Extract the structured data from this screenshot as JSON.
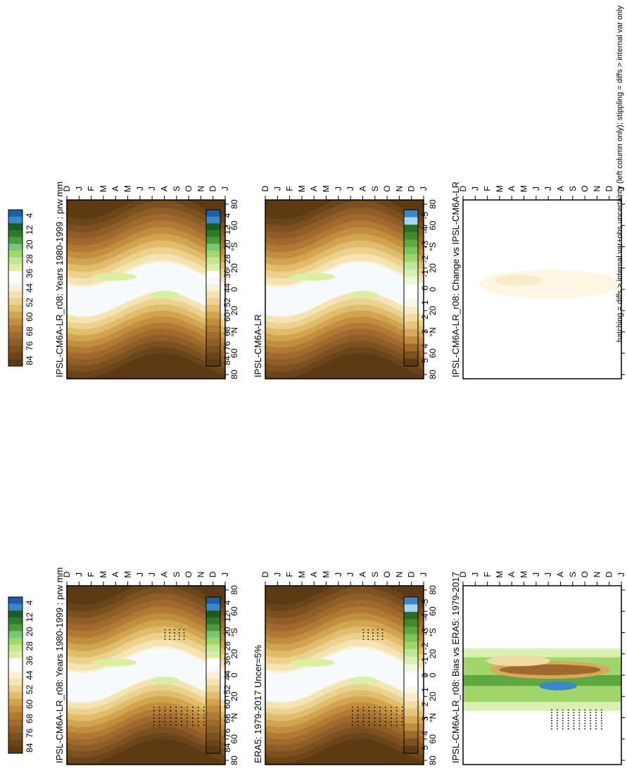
{
  "footer": "hatching = diffs > internal var+obs uncertainty (left column only); stippling = diffs > internal var only",
  "months": [
    "D",
    "J",
    "F",
    "M",
    "A",
    "M",
    "J",
    "J",
    "A",
    "S",
    "O",
    "N",
    "D",
    "J"
  ],
  "lat_labels": [
    "80",
    "60",
    "°N",
    "20",
    "0",
    "20",
    "°S",
    "60",
    "80"
  ],
  "climo_palette": [
    "#5c3a14",
    "#6b451a",
    "#7d5020",
    "#8f5d27",
    "#a06a2e",
    "#b07a35",
    "#c18e3e",
    "#d1a450",
    "#e0bd6b",
    "#ecd28e",
    "#f4e3b3",
    "#faf1d6",
    "#f7fbff",
    "#ffffff",
    "#d9f0a3",
    "#c2e699",
    "#a1d76a",
    "#78c679",
    "#4d9a3a",
    "#2f7a2a",
    "#1d5c1f",
    "#3a87c9",
    "#1a5ea8"
  ],
  "diff_palette": [
    "#5c3a14",
    "#7d5020",
    "#a06a2e",
    "#c18e3e",
    "#d7a95a",
    "#e6c47b",
    "#f0dba2",
    "#f7ecc7",
    "#fcf6e2",
    "#ffffff",
    "#ffffff",
    "#ecf8d9",
    "#d9f0b3",
    "#bfe59a",
    "#a1d76a",
    "#7fc35a",
    "#5ea840",
    "#3f8c2c",
    "#2a6e22",
    "#a9d4f0",
    "#3a87c9"
  ],
  "colors": {
    "frame": "#000000"
  },
  "panels": [
    {
      "id": "p1",
      "title": "IPSL-CM6A-LR_r08: Years 1980-1999 : prw mm",
      "kind": "climo",
      "stipple": true
    },
    {
      "id": "p2",
      "title": "ERA5: 1979-2017 Uncer=5%",
      "kind": "climo",
      "stipple": true
    },
    {
      "id": "p3",
      "title": "IPSL-CM6A-LR_r08: Bias vs ERA5: 1979-2017",
      "kind": "bias",
      "stipple": true
    },
    {
      "id": "p4",
      "title": "IPSL-CM6A-LR_r08: Years 1980-1999 : prw mm",
      "kind": "climo",
      "stipple": false
    },
    {
      "id": "p5",
      "title": "IPSL-CM6A-LR",
      "kind": "climo",
      "stipple": false
    },
    {
      "id": "p6",
      "title": "IPSL-CM6A-LR_r08: Change vs IPSL-CM6A-LR",
      "kind": "change",
      "stipple": false
    }
  ],
  "colorbars": [
    {
      "id": "cb1",
      "labels": [
        "84",
        "76",
        "68",
        "60",
        "52",
        "44",
        "36",
        "28",
        "20",
        "12",
        "4"
      ]
    },
    {
      "id": "cb2",
      "labels": [
        "84",
        "76",
        "68",
        "60",
        "52",
        "44",
        "36",
        "28",
        "20",
        "12",
        "4"
      ]
    },
    {
      "id": "cb3",
      "labels": [
        "5",
        "4",
        "3",
        "2",
        "1",
        "0",
        "-1",
        "-2",
        "-3",
        "-4",
        "-5"
      ]
    },
    {
      "id": "cb4",
      "labels": [
        "84",
        "76",
        "68",
        "60",
        "52",
        "44",
        "36",
        "28",
        "20",
        "12",
        "4"
      ]
    },
    {
      "id": "cb5",
      "labels": [
        "84",
        "76",
        "68",
        "60",
        "52",
        "44",
        "36",
        "28",
        "20",
        "12",
        "4"
      ]
    },
    {
      "id": "cb6",
      "labels": [
        "5",
        "4",
        "3",
        "2",
        "1",
        "0",
        "-1",
        "-2",
        "-3",
        "-4",
        "-5"
      ]
    }
  ],
  "chart_data": [
    {
      "type": "heatmap",
      "title": "IPSL-CM6A-LR_r08: Years 1980-1999 : prw mm",
      "x": [
        "D",
        "J",
        "F",
        "M",
        "A",
        "M",
        "J",
        "J",
        "A",
        "S",
        "O",
        "N",
        "D",
        "J"
      ],
      "y_ticks": [
        "80",
        "60",
        "°N",
        "20",
        "0",
        "20",
        "°S",
        "60",
        "80"
      ],
      "colorbar": [
        84,
        76,
        68,
        60,
        52,
        44,
        36,
        28,
        20,
        12,
        4
      ]
    },
    {
      "type": "heatmap",
      "title": "ERA5: 1979-2017 Uncer=5%",
      "x": [
        "D",
        "J",
        "F",
        "M",
        "A",
        "M",
        "J",
        "J",
        "A",
        "S",
        "O",
        "N",
        "D",
        "J"
      ],
      "y_ticks": [
        "80",
        "60",
        "°N",
        "20",
        "0",
        "20",
        "°S",
        "60",
        "80"
      ],
      "colorbar": [
        84,
        76,
        68,
        60,
        52,
        44,
        36,
        28,
        20,
        12,
        4
      ]
    },
    {
      "type": "heatmap",
      "title": "IPSL-CM6A-LR_r08: Bias vs ERA5: 1979-2017",
      "x": [
        "D",
        "J",
        "F",
        "M",
        "A",
        "M",
        "J",
        "J",
        "A",
        "S",
        "O",
        "N",
        "D",
        "J"
      ],
      "y_ticks": [
        "80",
        "60",
        "°N",
        "20",
        "0",
        "20",
        "°S",
        "60",
        "80"
      ],
      "colorbar": [
        5,
        4,
        3,
        2,
        1,
        0,
        -1,
        -2,
        -3,
        -4,
        -5
      ]
    },
    {
      "type": "heatmap",
      "title": "IPSL-CM6A-LR_r08: Years 1980-1999 : prw mm",
      "x": [
        "D",
        "J",
        "F",
        "M",
        "A",
        "M",
        "J",
        "J",
        "A",
        "S",
        "O",
        "N",
        "D",
        "J"
      ],
      "y_ticks": [
        "80",
        "60",
        "°N",
        "20",
        "0",
        "20",
        "°S",
        "60",
        "80"
      ],
      "colorbar": [
        84,
        76,
        68,
        60,
        52,
        44,
        36,
        28,
        20,
        12,
        4
      ]
    },
    {
      "type": "heatmap",
      "title": "IPSL-CM6A-LR",
      "x": [
        "D",
        "J",
        "F",
        "M",
        "A",
        "M",
        "J",
        "J",
        "A",
        "S",
        "O",
        "N",
        "D",
        "J"
      ],
      "y_ticks": [
        "80",
        "60",
        "°N",
        "20",
        "0",
        "20",
        "°S",
        "60",
        "80"
      ],
      "colorbar": [
        84,
        76,
        68,
        60,
        52,
        44,
        36,
        28,
        20,
        12,
        4
      ]
    },
    {
      "type": "heatmap",
      "title": "IPSL-CM6A-LR_r08: Change vs IPSL-CM6A-LR",
      "x": [
        "D",
        "J",
        "F",
        "M",
        "A",
        "M",
        "J",
        "J",
        "A",
        "S",
        "O",
        "N",
        "D",
        "J"
      ],
      "y_ticks": [
        "80",
        "60",
        "°N",
        "20",
        "0",
        "20",
        "°S",
        "60",
        "80"
      ],
      "colorbar": [
        5,
        4,
        3,
        2,
        1,
        0,
        -1,
        -2,
        -3,
        -4,
        -5
      ]
    }
  ]
}
